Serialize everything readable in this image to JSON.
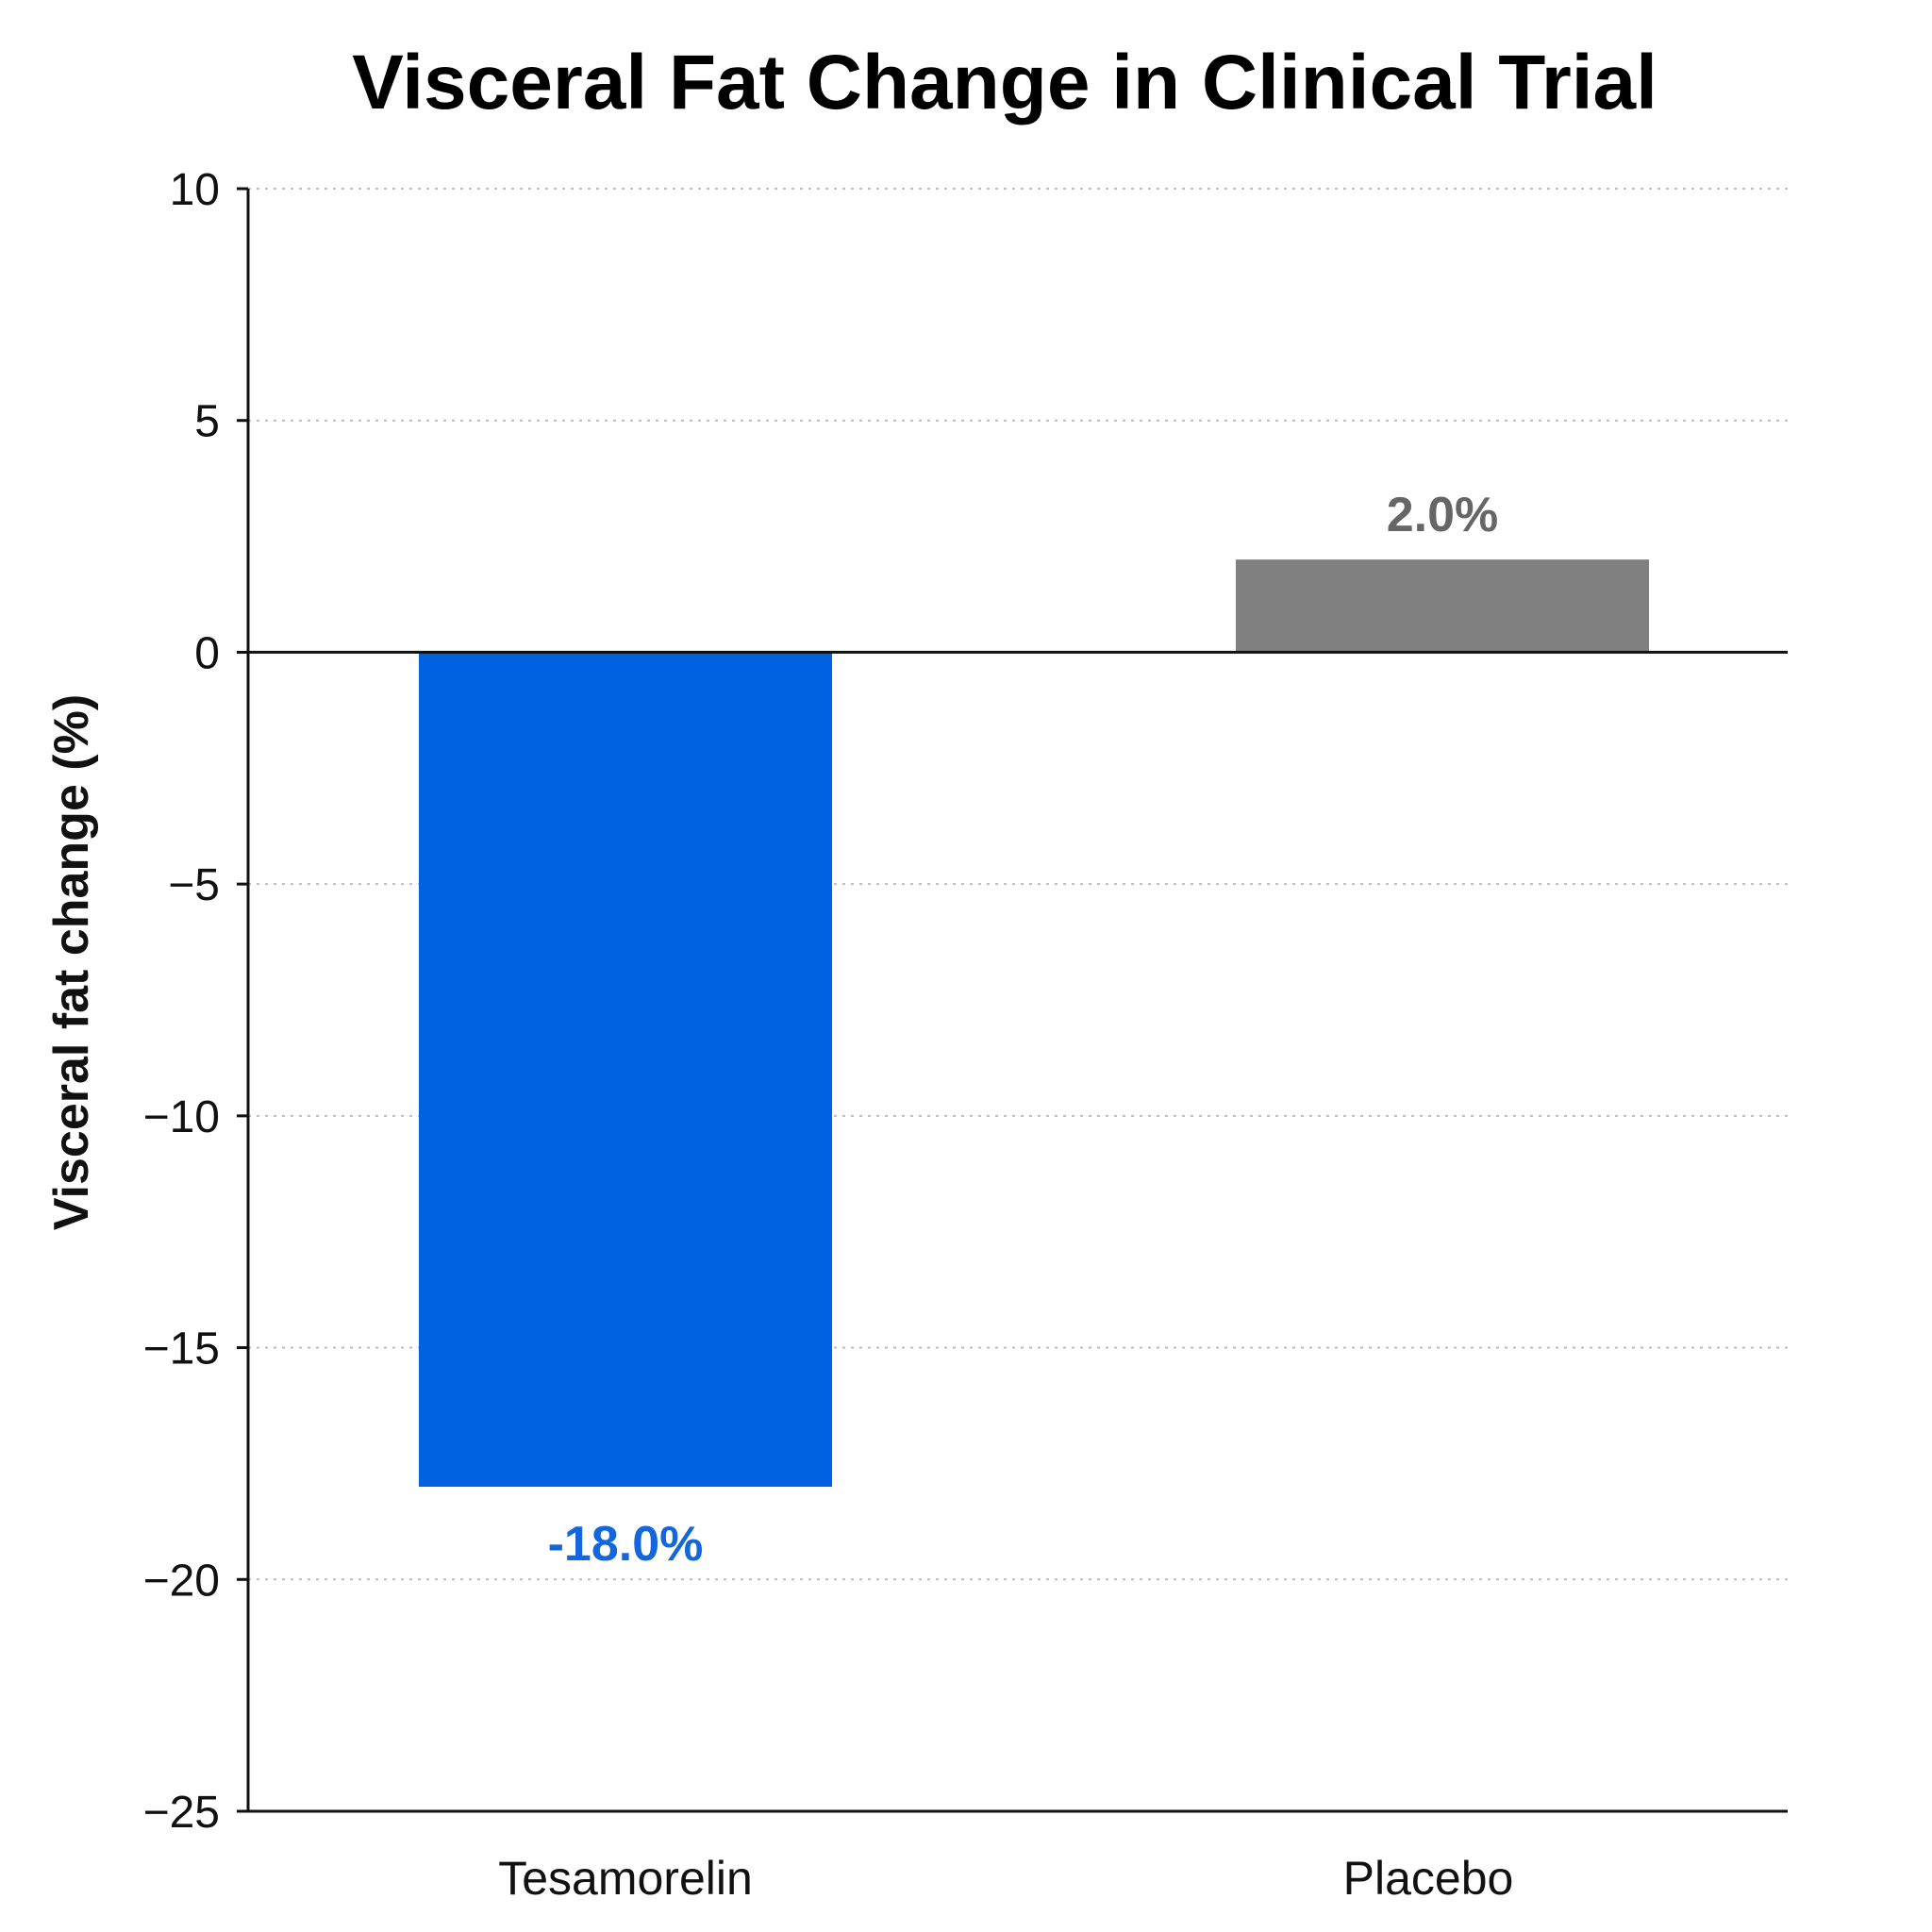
{
  "chart_data": {
    "type": "bar",
    "title": "Visceral Fat Change in Clinical Trial",
    "xlabel": "",
    "ylabel": "Visceral fat change (%)",
    "categories": [
      "Tesamorelin",
      "Placebo"
    ],
    "values": [
      -18.0,
      2.0
    ],
    "value_labels": [
      "-18.0%",
      "2.0%"
    ],
    "colors": [
      "#0062e0",
      "#808080"
    ],
    "value_label_colors": [
      "#1466dc",
      "#666666"
    ],
    "ylim": [
      -25,
      10
    ],
    "yticks": [
      10,
      5,
      0,
      -5,
      -10,
      -15,
      -20,
      -25
    ],
    "ytick_labels": [
      "10",
      "5",
      "0",
      "−5",
      "−10",
      "−15",
      "−20",
      "−25"
    ],
    "grid": true,
    "legend": "none"
  }
}
